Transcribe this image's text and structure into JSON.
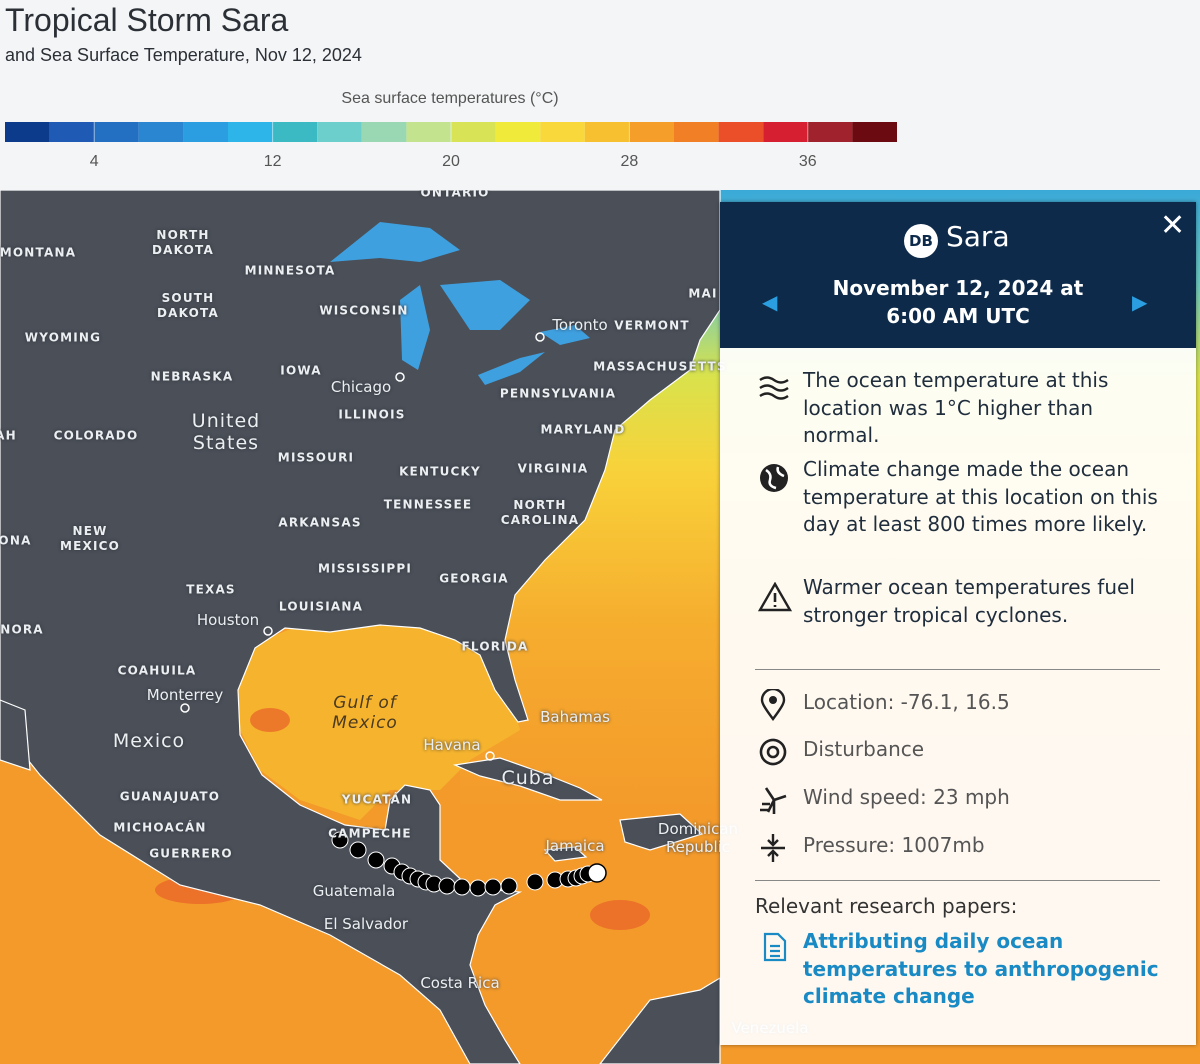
{
  "header": {
    "title": "Tropical Storm Sara",
    "subtitle": "and Sea Surface Temperature, Nov 12, 2024"
  },
  "legend": {
    "title": "Sea surface temperatures (°C)",
    "range": [
      0,
      40
    ],
    "ticks": [
      4,
      12,
      20,
      28,
      36
    ],
    "colors": [
      "#0d3b8c",
      "#1f5bb5",
      "#2370c2",
      "#2a86d1",
      "#2a9ee0",
      "#2db5ea",
      "#3bbac4",
      "#6ccfcb",
      "#9ad8b4",
      "#c3e38f",
      "#d8e455",
      "#f0eb3a",
      "#f8d83a",
      "#f7c030",
      "#f59f2a",
      "#f07f26",
      "#ea4f2a",
      "#d61f30",
      "#a0222c",
      "#6b0a10"
    ]
  },
  "map": {
    "labels": [
      "ONTARIO",
      "MONTANA",
      "NORTH DAKOTA",
      "MINNESOTA",
      "SOUTH DAKOTA",
      "WISCONSIN",
      "WYOMING",
      "NEBRASKA",
      "IOWA",
      "Chicago",
      "Toronto",
      "VERMONT",
      "MAI",
      "MASSACHUSETTS",
      "PENNSYLVANIA",
      "ILLINOIS",
      "United States",
      "AH",
      "COLORADO",
      "MARYLAND",
      "MISSOURI",
      "KENTUCKY",
      "VIRGINIA",
      "TENNESSEE",
      "NORTH CAROLINA",
      "ONA",
      "NEW MEXICO",
      "ARKANSAS",
      "MISSISSIPPI",
      "GEORGIA",
      "TEXAS",
      "LOUISIANA",
      "Houston",
      "NORA",
      "FLORIDA",
      "COAHUILA",
      "Monterrey",
      "Gulf of Mexico",
      "Bahamas",
      "Mexico",
      "Havana",
      "Cuba",
      "GUANAJUATO",
      "YUCATÁN",
      "MICHOACÁN",
      "CAMPECHE",
      "Dominican Republic",
      "Jamaica",
      "GUERRERO",
      "Guatemala",
      "El Salvador",
      "Costa Rica",
      "Venezuela"
    ]
  },
  "panel": {
    "badge": "DB",
    "name": "Sara",
    "date": "November 12, 2024 at 6:00 AM UTC",
    "facts": [
      "The ocean temperature at this location was 1°C higher than normal.",
      "Climate change made the ocean temperature at this location on this day at least 800 times more likely.",
      "Warmer ocean temperatures fuel stronger tropical cyclones."
    ],
    "details": [
      "Location: -76.1, 16.5",
      "Disturbance",
      "Wind speed: 23 mph",
      "Pressure: 1007mb"
    ],
    "research": {
      "heading": "Relevant research papers:",
      "link": "Attributing daily ocean temperatures to anthropogenic climate change"
    }
  }
}
